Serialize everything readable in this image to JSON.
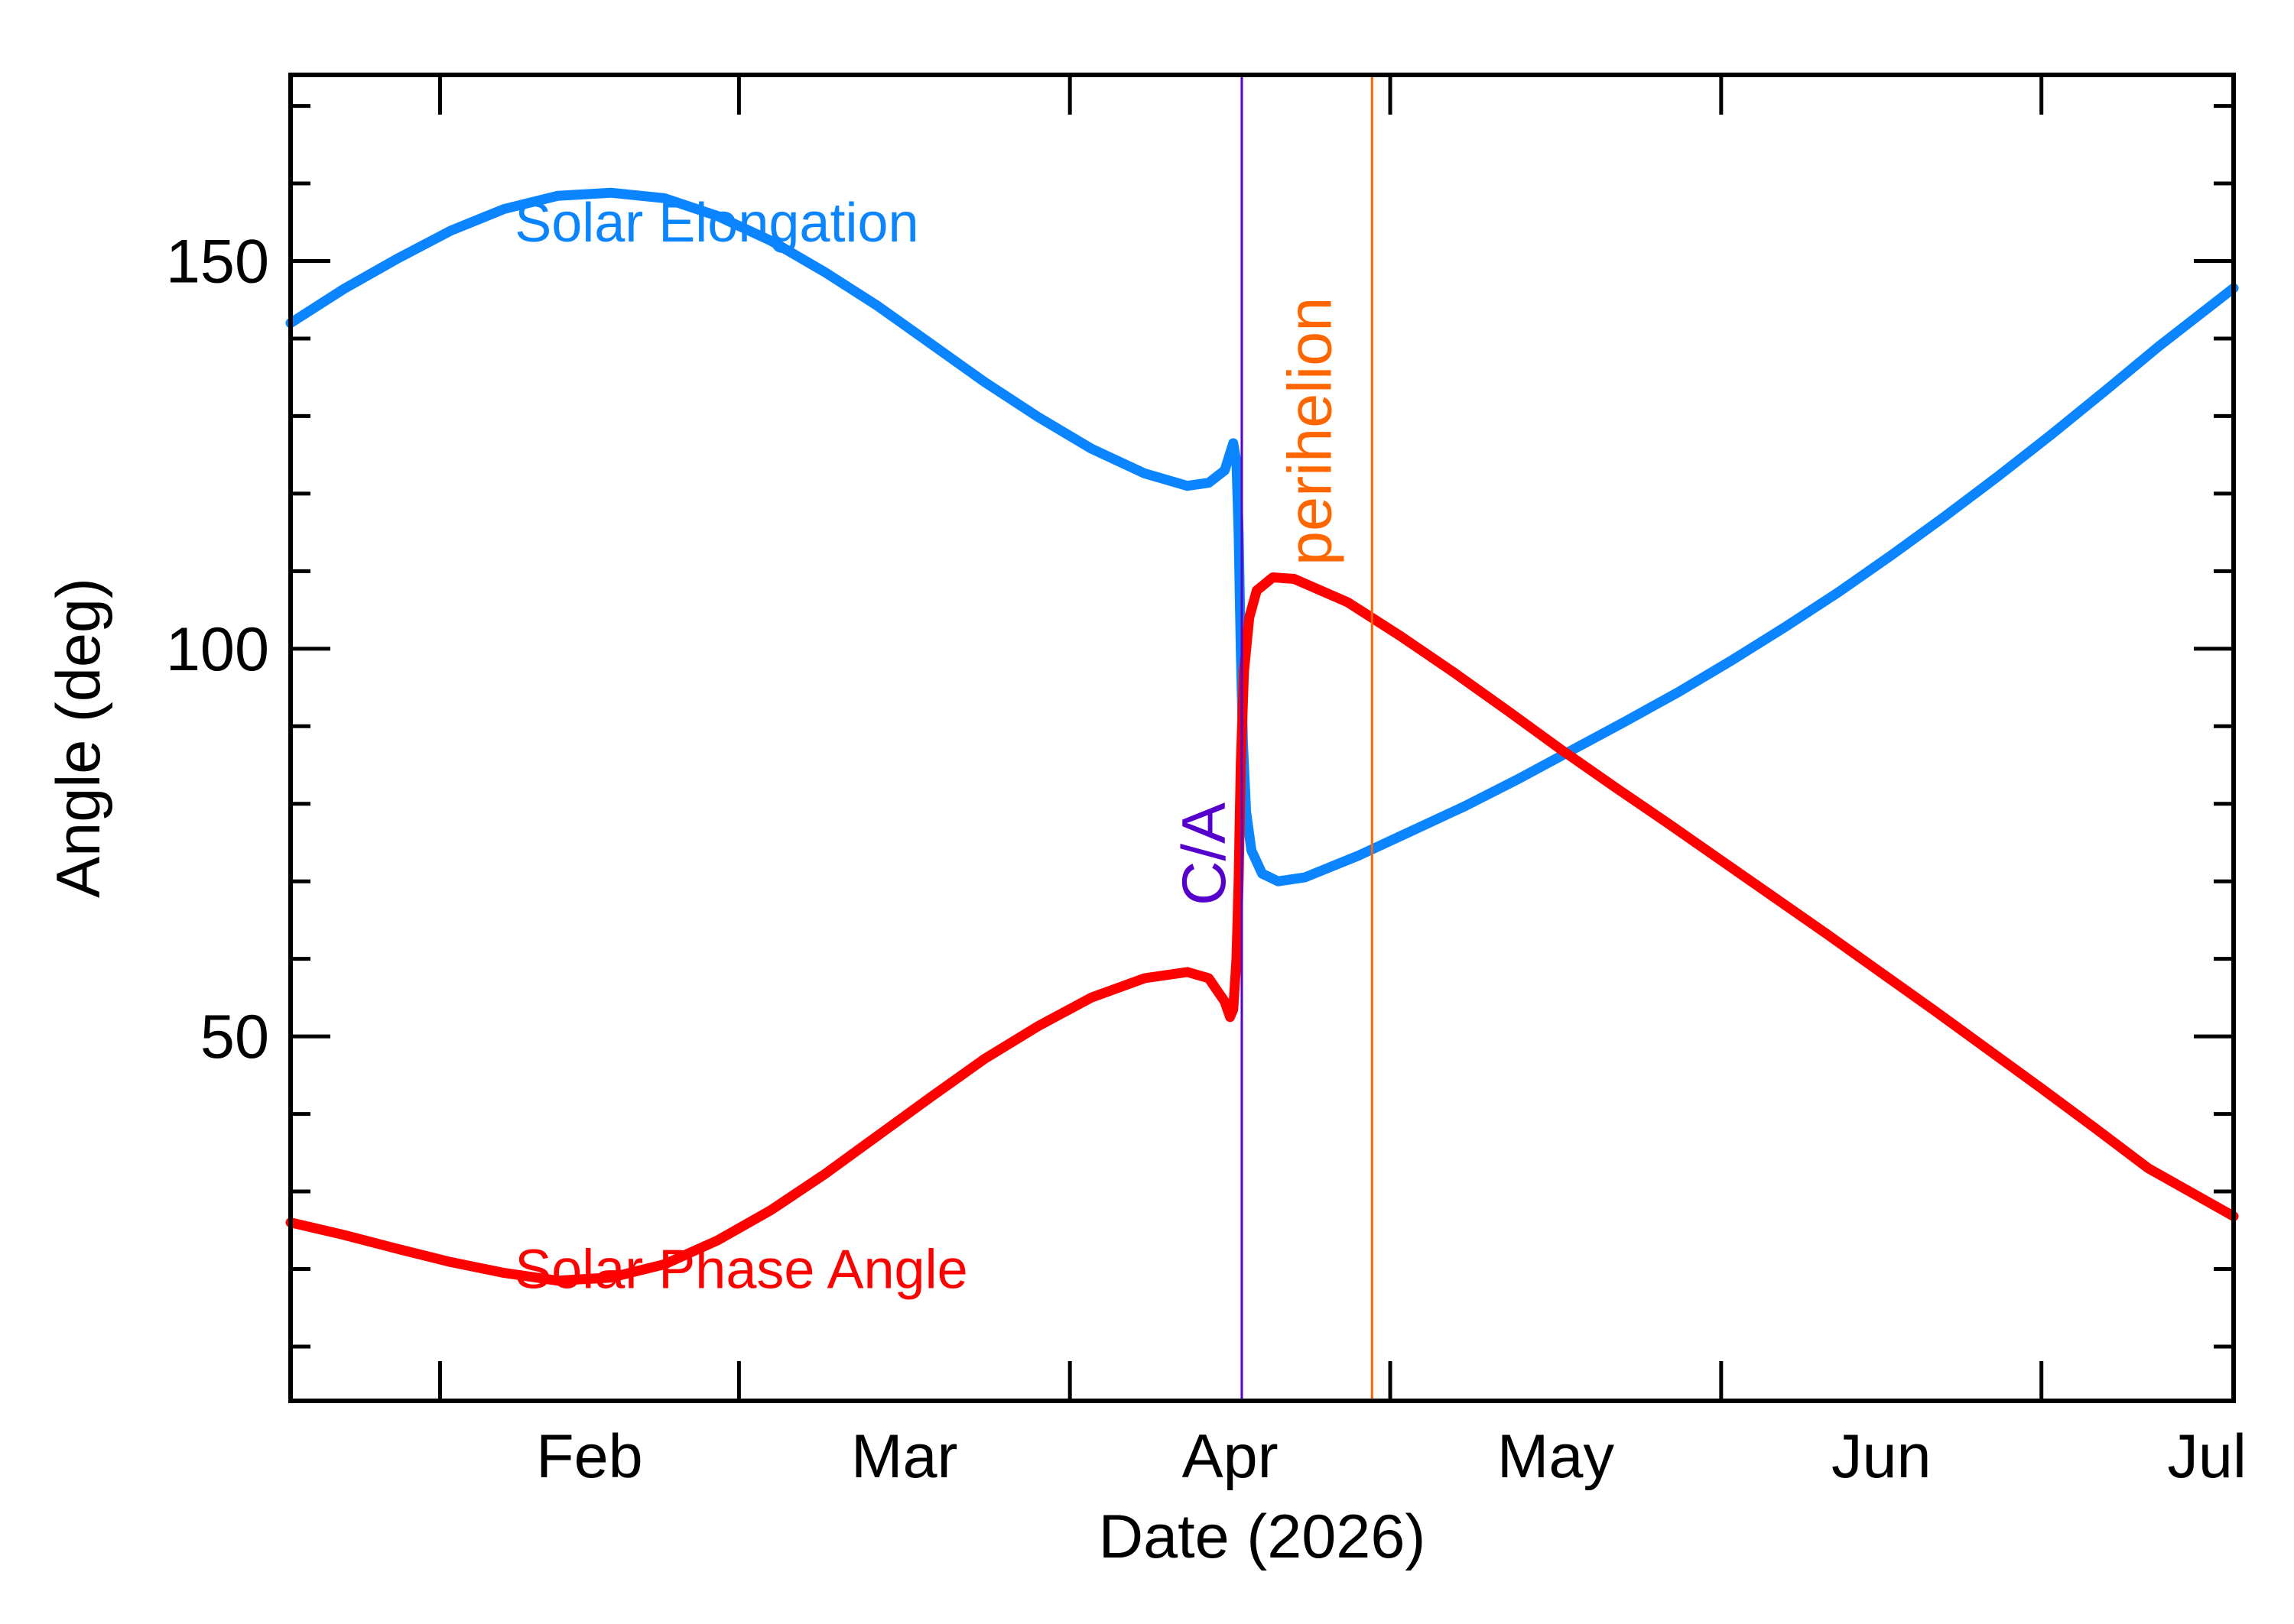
{
  "chart_data": {
    "type": "line",
    "title": "",
    "xlabel": "Date (2026)",
    "ylabel": "Angle (deg)",
    "x_unit": "date",
    "xlim": [
      "2026-01-18",
      "2026-07-19"
    ],
    "ylim": [
      3,
      174
    ],
    "grid": false,
    "legend": "none (series labeled inline)",
    "x_ticks": [
      {
        "date": "2026-02-01",
        "label": "Feb"
      },
      {
        "date": "2026-03-01",
        "label": "Mar"
      },
      {
        "date": "2026-04-01",
        "label": "Apr"
      },
      {
        "date": "2026-05-01",
        "label": "May"
      },
      {
        "date": "2026-06-01",
        "label": "Jun"
      },
      {
        "date": "2026-07-01",
        "label": "Jul"
      }
    ],
    "y_ticks": [
      50,
      100,
      150
    ],
    "series": [
      {
        "name": "Solar Elongation",
        "color": "#0a84ff",
        "points": [
          [
            "2026-01-18",
            142
          ],
          [
            "2026-01-23",
            146.4
          ],
          [
            "2026-01-28",
            150.3
          ],
          [
            "2026-02-02",
            153.9
          ],
          [
            "2026-02-07",
            156.7
          ],
          [
            "2026-02-12",
            158.4
          ],
          [
            "2026-02-17",
            158.8
          ],
          [
            "2026-02-22",
            158.1
          ],
          [
            "2026-02-27",
            155.8
          ],
          [
            "2026-03-04",
            152.6
          ],
          [
            "2026-03-09",
            148.6
          ],
          [
            "2026-03-14",
            144.2
          ],
          [
            "2026-03-19",
            139.3
          ],
          [
            "2026-03-24",
            134.4
          ],
          [
            "2026-03-29",
            129.9
          ],
          [
            "2026-04-03",
            125.8
          ],
          [
            "2026-04-08",
            122.6
          ],
          [
            "2026-04-12",
            121.0
          ],
          [
            "2026-04-14",
            121.4
          ],
          [
            "2026-04-15.5",
            123.0
          ],
          [
            "2026-04-16.3",
            126.5
          ],
          [
            "2026-04-16.6",
            124.0
          ],
          [
            "2026-04-16.8",
            115.0
          ],
          [
            "2026-04-17.0",
            100.0
          ],
          [
            "2026-04-17.2",
            88.0
          ],
          [
            "2026-04-17.5",
            79.0
          ],
          [
            "2026-04-18.0",
            74.0
          ],
          [
            "2026-04-19.0",
            71.0
          ],
          [
            "2026-04-20.5",
            70.0
          ],
          [
            "2026-04-23",
            70.5
          ],
          [
            "2026-04-28",
            73.3
          ],
          [
            "2026-05-03",
            76.5
          ],
          [
            "2026-05-08",
            79.7
          ],
          [
            "2026-05-13",
            83.2
          ],
          [
            "2026-05-18",
            86.9
          ],
          [
            "2026-05-23",
            90.6
          ],
          [
            "2026-05-28",
            94.4
          ],
          [
            "2026-06-02",
            98.5
          ],
          [
            "2026-06-07",
            102.8
          ],
          [
            "2026-06-12",
            107.3
          ],
          [
            "2026-06-17",
            112.1
          ],
          [
            "2026-06-22",
            117.1
          ],
          [
            "2026-06-27",
            122.3
          ],
          [
            "2026-07-02",
            127.7
          ],
          [
            "2026-07-07",
            133.3
          ],
          [
            "2026-07-12",
            139.0
          ],
          [
            "2026-07-19",
            146.5
          ]
        ]
      },
      {
        "name": "Solar Phase Angle",
        "color": "#ff0000",
        "points": [
          [
            "2026-01-18",
            26
          ],
          [
            "2026-01-23",
            24.4
          ],
          [
            "2026-01-28",
            22.6
          ],
          [
            "2026-02-02",
            20.9
          ],
          [
            "2026-02-07",
            19.5
          ],
          [
            "2026-02-12",
            18.5
          ],
          [
            "2026-02-17",
            18.9
          ],
          [
            "2026-02-22",
            20.6
          ],
          [
            "2026-02-27",
            23.7
          ],
          [
            "2026-03-04",
            27.6
          ],
          [
            "2026-03-09",
            32.2
          ],
          [
            "2026-03-14",
            37.2
          ],
          [
            "2026-03-19",
            42.2
          ],
          [
            "2026-03-24",
            47.1
          ],
          [
            "2026-03-29",
            51.3
          ],
          [
            "2026-04-03",
            55.0
          ],
          [
            "2026-04-08",
            57.5
          ],
          [
            "2026-04-12",
            58.3
          ],
          [
            "2026-04-14",
            57.5
          ],
          [
            "2026-04-15.5",
            54.5
          ],
          [
            "2026-04-16.0",
            52.5
          ],
          [
            "2026-04-16.3",
            53.5
          ],
          [
            "2026-04-16.6",
            60.0
          ],
          [
            "2026-04-16.8",
            70.0
          ],
          [
            "2026-04-17.0",
            85.0
          ],
          [
            "2026-04-17.3",
            97.0
          ],
          [
            "2026-04-17.8",
            104.0
          ],
          [
            "2026-04-18.5",
            107.5
          ],
          [
            "2026-04-20",
            109.2
          ],
          [
            "2026-04-22",
            109.0
          ],
          [
            "2026-04-27",
            106.0
          ],
          [
            "2026-05-02",
            101.6
          ],
          [
            "2026-05-07",
            96.9
          ],
          [
            "2026-05-12",
            92.0
          ],
          [
            "2026-05-17",
            87.0
          ],
          [
            "2026-05-22",
            82.2
          ],
          [
            "2026-05-27",
            77.5
          ],
          [
            "2026-06-01",
            72.7
          ],
          [
            "2026-06-06",
            67.9
          ],
          [
            "2026-06-11",
            63.1
          ],
          [
            "2026-06-16",
            58.2
          ],
          [
            "2026-06-21",
            53.3
          ],
          [
            "2026-06-26",
            48.3
          ],
          [
            "2026-07-01",
            43.3
          ],
          [
            "2026-07-06",
            38.2
          ],
          [
            "2026-07-11",
            33.0
          ],
          [
            "2026-07-19",
            26.8
          ]
        ]
      }
    ],
    "series_labels": [
      {
        "text": "Solar Elongation",
        "color": "#0a84ff",
        "anchor": [
          "2026-02-08",
          155
        ]
      },
      {
        "text": "Solar Phase Angle",
        "color": "#ff0000",
        "anchor": [
          "2026-02-08",
          20
        ]
      }
    ],
    "vertical_markers": [
      {
        "label": "C/A",
        "date": "2026-04-17.1",
        "color": "#5500cc"
      },
      {
        "label": "perihelion",
        "date": "2026-04-29.3",
        "color": "#ff6600"
      }
    ]
  }
}
